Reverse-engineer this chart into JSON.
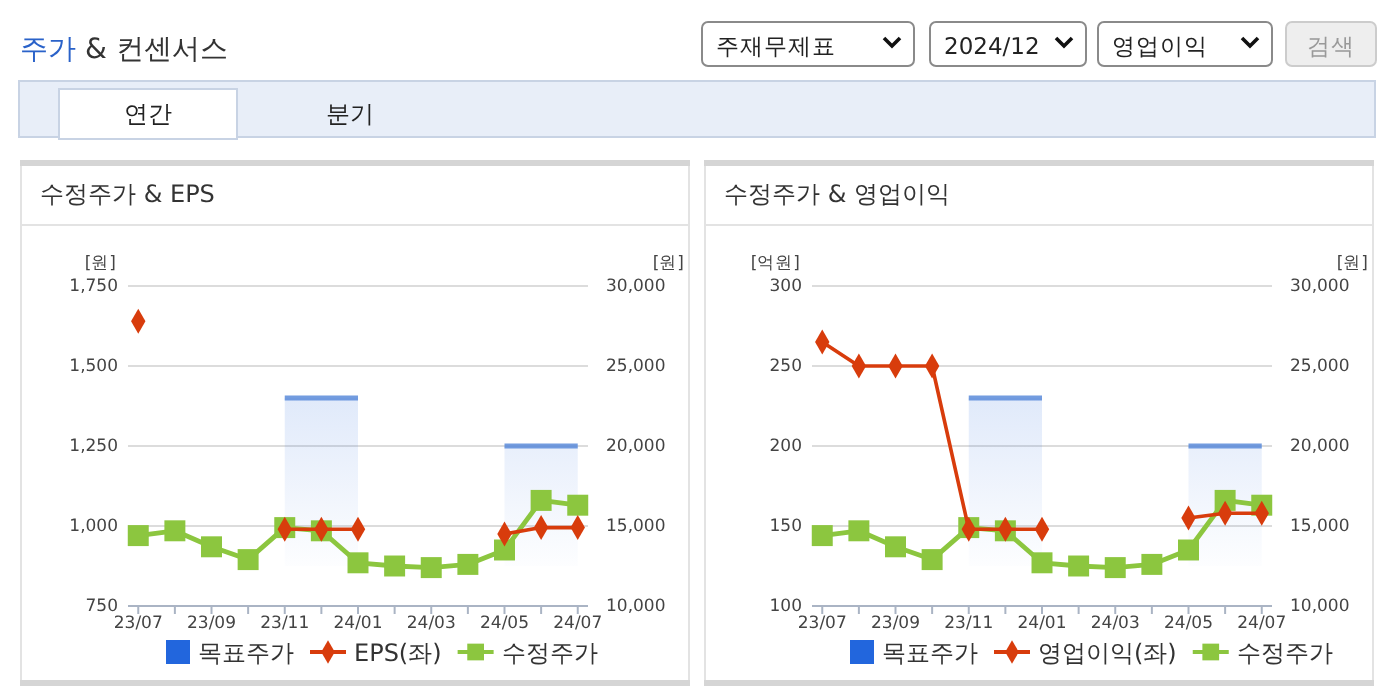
{
  "chart_data": [
    {
      "type": "other",
      "title": "주가 & 컨센서스",
      "annotations": [
        "주재무제표",
        "2024/12",
        "영업이익",
        "검색",
        "연간",
        "분기"
      ]
    },
    {
      "type": "line",
      "title": "수정주가 & EPS",
      "ylabel": "[원]",
      "y2label": "[원]",
      "categories": [
        "23/07",
        null,
        "23/09",
        null,
        "23/11",
        null,
        "24/01",
        null,
        "24/03",
        null,
        "24/05",
        null,
        "24/07"
      ],
      "ylim": [
        750,
        1750
      ],
      "yticks": [
        750,
        {
          "value": 1000,
          "label": "1,000"
        },
        {
          "value": 1250,
          "label": "1,250"
        },
        {
          "value": 1500,
          "label": "1,500"
        },
        {
          "value": 1750,
          "label": "1,750"
        }
      ],
      "y2lim": [
        10000,
        30000
      ],
      "y2ticks": [
        {
          "value": 10000,
          "label": "10,000"
        },
        {
          "value": 15000,
          "label": "15,000"
        },
        {
          "value": 20000,
          "label": "20,000"
        },
        {
          "value": 25000,
          "label": "25,000"
        },
        {
          "value": 30000,
          "label": "30,000"
        }
      ],
      "grid": "y",
      "legend": "bottom",
      "series": [
        {
          "name": "목표주가",
          "type": "area",
          "axis": "y2",
          "color": "#2266dd",
          "values": [
            null,
            null,
            null,
            null,
            23000,
            23000,
            23000,
            null,
            null,
            null,
            20000,
            20000,
            20000
          ]
        },
        {
          "name": "EPS(좌)",
          "type": "line",
          "marker": "diamond",
          "color": "#d83c0c",
          "values": [
            1640,
            null,
            null,
            null,
            990,
            990,
            990,
            null,
            null,
            null,
            975,
            995,
            995
          ]
        },
        {
          "name": "수정주가",
          "type": "line",
          "axis": "y2",
          "marker": "square",
          "color": "#8cc63f",
          "values": [
            14400,
            14700,
            13700,
            12900,
            14900,
            14700,
            12700,
            12500,
            12400,
            12600,
            13500,
            16600,
            16300
          ]
        }
      ]
    },
    {
      "type": "line",
      "title": "수정주가 & 영업이익",
      "ylabel": "[억원]",
      "y2label": "[원]",
      "categories": [
        "23/07",
        null,
        "23/09",
        null,
        "23/11",
        null,
        "24/01",
        null,
        "24/03",
        null,
        "24/05",
        null,
        "24/07"
      ],
      "ylim": [
        100,
        300
      ],
      "yticks": [
        100,
        150,
        200,
        250,
        300
      ],
      "y2lim": [
        10000,
        30000
      ],
      "y2ticks": [
        {
          "value": 10000,
          "label": "10,000"
        },
        {
          "value": 15000,
          "label": "15,000"
        },
        {
          "value": 20000,
          "label": "20,000"
        },
        {
          "value": 25000,
          "label": "25,000"
        },
        {
          "value": 30000,
          "label": "30,000"
        }
      ],
      "grid": "y",
      "legend": "bottom",
      "series": [
        {
          "name": "목표주가",
          "type": "area",
          "axis": "y2",
          "color": "#2266dd",
          "values": [
            null,
            null,
            null,
            null,
            23000,
            23000,
            23000,
            null,
            null,
            null,
            20000,
            20000,
            20000
          ]
        },
        {
          "name": "영업이익(좌)",
          "type": "line",
          "marker": "diamond",
          "color": "#d83c0c",
          "values": [
            265,
            250,
            250,
            250,
            148,
            148,
            148,
            null,
            null,
            null,
            155,
            158,
            158
          ]
        },
        {
          "name": "수정주가",
          "type": "line",
          "axis": "y2",
          "marker": "square",
          "color": "#8cc63f",
          "values": [
            14400,
            14700,
            13700,
            12900,
            14900,
            14700,
            12700,
            12500,
            12400,
            12600,
            13500,
            16600,
            16300
          ]
        }
      ]
    }
  ]
}
